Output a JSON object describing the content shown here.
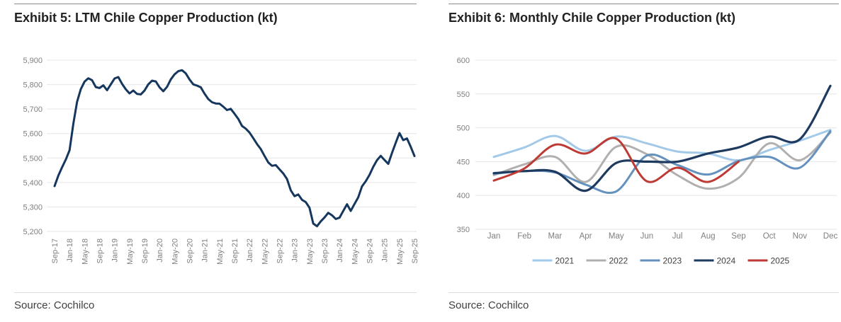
{
  "panels": {
    "left": {
      "title": "Exhibit 5: LTM Chile Copper Production (kt)",
      "source": "Source: Cochilco"
    },
    "right": {
      "title": "Exhibit 6: Monthly Chile Copper Production (kt)",
      "source": "Source: Cochilco"
    }
  },
  "colors": {
    "ltm_line": "#16375D",
    "grid": "#e6e6e6",
    "axis_text": "#7f7f7f",
    "legend_text": "#404040"
  },
  "chart_data": [
    {
      "type": "line",
      "title": "Exhibit 5: LTM Chile Copper Production (kt)",
      "x_start": "Sep-17",
      "x_end": "Sep-25",
      "x_frequency": "monthly",
      "x_tick_labels": [
        "Sep-17",
        "Jan-18",
        "May-18",
        "Sep-18",
        "Jan-19",
        "May-19",
        "Sep-19",
        "Jan-20",
        "May-20",
        "Sep-20",
        "Jan-21",
        "May-21",
        "Sep-21",
        "Jan-22",
        "May-22",
        "Sep-22",
        "Jan-23",
        "May-23",
        "Sep-23",
        "Jan-24",
        "May-24",
        "Sep-24",
        "Jan-25",
        "May-25",
        "Sep-25"
      ],
      "x_months_per_tick": 4,
      "ylim": [
        5200,
        5900
      ],
      "ystep": 100,
      "y_format": "thousands-comma",
      "grid": true,
      "legend": false,
      "smooth": false,
      "series": [
        {
          "name": "LTM Chile copper production (kt)",
          "color": "#16375D",
          "width": 3,
          "values": [
            5385,
            5428,
            5462,
            5494,
            5532,
            5640,
            5730,
            5781,
            5812,
            5826,
            5818,
            5790,
            5786,
            5797,
            5777,
            5801,
            5825,
            5831,
            5803,
            5781,
            5764,
            5776,
            5762,
            5760,
            5776,
            5801,
            5816,
            5813,
            5789,
            5773,
            5791,
            5821,
            5842,
            5855,
            5859,
            5846,
            5821,
            5801,
            5796,
            5789,
            5763,
            5741,
            5728,
            5723,
            5722,
            5710,
            5696,
            5701,
            5681,
            5660,
            5631,
            5620,
            5604,
            5581,
            5557,
            5537,
            5509,
            5482,
            5468,
            5471,
            5454,
            5437,
            5414,
            5368,
            5344,
            5351,
            5329,
            5320,
            5297,
            5232,
            5221,
            5241,
            5257,
            5276,
            5266,
            5251,
            5256,
            5284,
            5311,
            5284,
            5312,
            5339,
            5384,
            5405,
            5431,
            5464,
            5491,
            5509,
            5492,
            5476,
            5521,
            5562,
            5602,
            5573,
            5580,
            5546,
            5508
          ]
        }
      ]
    },
    {
      "type": "line",
      "title": "Exhibit 6: Monthly Chile Copper Production (kt)",
      "categories": [
        "Jan",
        "Feb",
        "Mar",
        "Apr",
        "May",
        "Jun",
        "Jul",
        "Aug",
        "Sep",
        "Oct",
        "Nov",
        "Dec"
      ],
      "ylim": [
        350,
        600
      ],
      "ystep": 50,
      "grid": true,
      "legend_position": "bottom",
      "smooth": true,
      "series": [
        {
          "name": "2021",
          "color": "#A3C9E8",
          "width": 3,
          "values": [
            457,
            471,
            488,
            466,
            487,
            477,
            465,
            462,
            452,
            467,
            481,
            497
          ]
        },
        {
          "name": "2022",
          "color": "#B2AFAF",
          "width": 3,
          "values": [
            430,
            446,
            457,
            420,
            472,
            461,
            430,
            410,
            426,
            477,
            452,
            493
          ]
        },
        {
          "name": "2023",
          "color": "#6491BE",
          "width": 3,
          "values": [
            432,
            436,
            434,
            416,
            406,
            459,
            445,
            431,
            451,
            457,
            441,
            495
          ]
        },
        {
          "name": "2024",
          "color": "#1E3A5F",
          "width": 3.2,
          "values": [
            433,
            436,
            435,
            407,
            448,
            450,
            450,
            462,
            471,
            487,
            483,
            562
          ]
        },
        {
          "name": "2025",
          "color": "#BE3A34",
          "width": 3,
          "values": [
            422,
            440,
            475,
            462,
            484,
            421,
            441,
            420,
            450
          ]
        }
      ]
    }
  ]
}
